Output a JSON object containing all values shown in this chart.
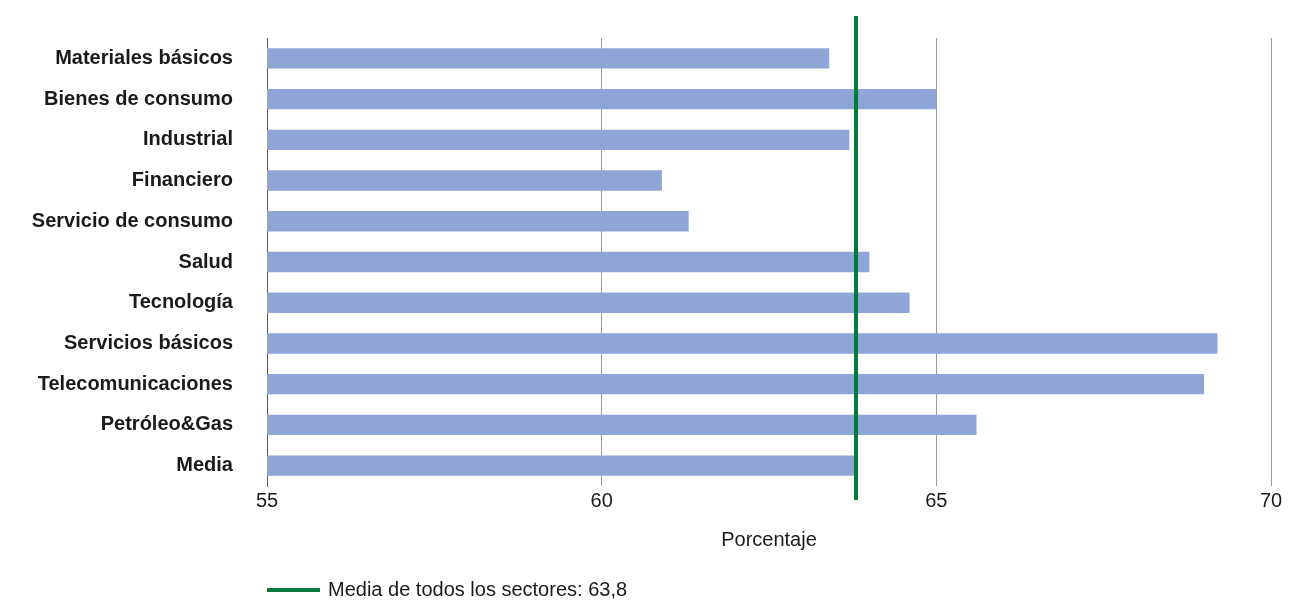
{
  "chart_data": {
    "type": "bar",
    "orientation": "horizontal",
    "xlabel": "Porcentaje",
    "categories": [
      "Materiales básicos",
      "Bienes de consumo",
      "Industrial",
      "Financiero",
      "Servicio de consumo",
      "Salud",
      "Tecnología",
      "Servicios básicos",
      "Telecomunicaciones",
      "Petróleo&Gas",
      "Media"
    ],
    "values": [
      63.4,
      65.0,
      63.7,
      60.9,
      61.3,
      64.0,
      64.6,
      69.2,
      69.0,
      65.6,
      63.8
    ],
    "color": "#8ea5d5",
    "xlim": [
      55,
      70
    ],
    "xticks": [
      55,
      60,
      65,
      70
    ],
    "grid": "x",
    "legend": "bottom",
    "ref_lines": [
      {
        "axis": "x",
        "value": 63.8,
        "label": "Media de todos los sectores: 63,8",
        "color": "#007a3d"
      }
    ]
  }
}
